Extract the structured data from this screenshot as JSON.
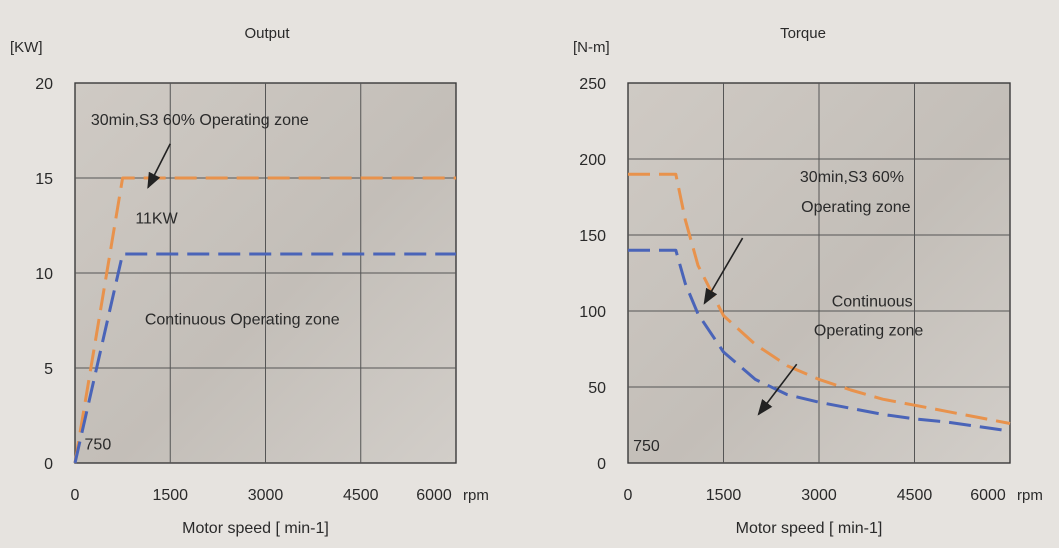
{
  "chart_data": [
    {
      "type": "line",
      "title": "Output",
      "ylabel": "[KW]",
      "xlabel": "Motor speed [ min-1]",
      "x_unit": "rpm",
      "x_ticks": [
        "0",
        "1500",
        "3000",
        "4500",
        "6000"
      ],
      "y_ticks": [
        "0",
        "5",
        "10",
        "15",
        "20"
      ],
      "xlim": [
        0,
        6000
      ],
      "ylim": [
        0,
        20
      ],
      "grid": true,
      "series": [
        {
          "color": "#e8924c",
          "dash": "dashed",
          "x": [
            0,
            750,
            6000
          ],
          "y": [
            0,
            15,
            15
          ]
        },
        {
          "color": "#4a64b8",
          "dash": "dashed",
          "x": [
            0,
            750,
            6000
          ],
          "y": [
            0,
            11,
            11
          ]
        }
      ],
      "annotations": [
        {
          "text": "30min,S3 60% Operating zone",
          "x": 250,
          "y": 17.8
        },
        {
          "text": "11KW",
          "x": 950,
          "y": 12.6
        },
        {
          "text": "Continuous Operating zone",
          "x": 1100,
          "y": 7.3
        },
        {
          "text": "750",
          "x": 150,
          "y": 0.7
        }
      ],
      "arrows": [
        {
          "from": [
            1500,
            16.8
          ],
          "to": [
            1150,
            14.5
          ]
        }
      ]
    },
    {
      "type": "line",
      "title": "Torque",
      "ylabel": "[N-m]",
      "xlabel": "Motor speed [ min-1]",
      "x_unit": "rpm",
      "x_ticks": [
        "0",
        "1500",
        "3000",
        "4500",
        "6000"
      ],
      "y_ticks": [
        "0",
        "50",
        "100",
        "150",
        "200",
        "250"
      ],
      "xlim": [
        0,
        6000
      ],
      "ylim": [
        0,
        250
      ],
      "grid": true,
      "series": [
        {
          "color": "#e8924c",
          "dash": "dashed",
          "x": [
            0,
            750,
            900,
            1100,
            1500,
            2000,
            2500,
            3000,
            3500,
            4000,
            4500,
            5000,
            5500,
            6000
          ],
          "y": [
            190,
            190,
            160,
            130,
            97,
            78,
            64,
            55,
            48,
            42,
            38,
            34,
            30,
            26
          ]
        },
        {
          "color": "#4a64b8",
          "dash": "dashed",
          "x": [
            0,
            750,
            900,
            1100,
            1500,
            2000,
            2500,
            3000,
            3500,
            4000,
            4500,
            5000,
            5500,
            6000
          ],
          "y": [
            140,
            140,
            118,
            98,
            73,
            55,
            45,
            40,
            36,
            32,
            29,
            27,
            24,
            21
          ]
        }
      ],
      "annotations": [
        {
          "text": "30min,S3 60%",
          "x": 2700,
          "y": 185
        },
        {
          "text": "Operating zone",
          "x": 2720,
          "y": 165
        },
        {
          "text": "Continuous",
          "x": 3200,
          "y": 103
        },
        {
          "text": "Operating zone",
          "x": 2920,
          "y": 84
        },
        {
          "text": "750",
          "x": 80,
          "y": 8
        }
      ],
      "arrows": [
        {
          "from": [
            1800,
            148
          ],
          "to": [
            1200,
            105
          ]
        },
        {
          "from": [
            2650,
            65
          ],
          "to": [
            2050,
            32
          ]
        }
      ]
    }
  ]
}
